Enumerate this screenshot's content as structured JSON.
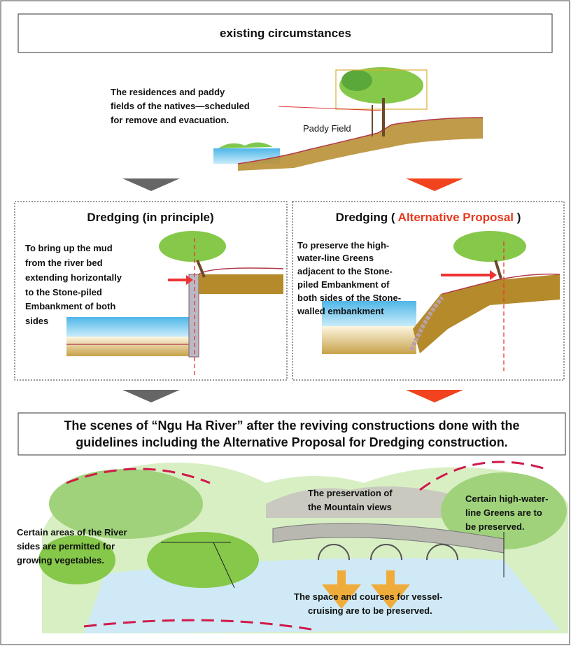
{
  "header": {
    "title": "existing circumstances"
  },
  "existing": {
    "note": [
      "The residences and paddy",
      "fields of the natives—scheduled",
      "for remove and evacuation."
    ],
    "label": "Paddy Field"
  },
  "panels": [
    {
      "title": "Dredging (in principle)",
      "text": [
        "To bring up the mud",
        "from the river bed",
        "extending horizontally",
        "to the Stone-piled",
        "Embankment of both",
        "sides"
      ]
    },
    {
      "title": "Dredging (",
      "highlight": "Alternative Proposal",
      "title_end": ")",
      "text": [
        "To preserve the high-",
        "water-line Greens",
        "adjacent to the Stone-",
        "piled Embankment of",
        "both sides of the Stone-",
        "walled embankment"
      ]
    }
  ],
  "scene": {
    "heading": [
      "The scenes of “Ngu Ha River” after the reviving constructions done with the",
      "guidelines including the Alternative Proposal for Dredging construction."
    ],
    "annotations": [
      [
        "The preservation of",
        "the Mountain views"
      ],
      [
        "Certain high-water-",
        "line Greens  are to",
        "be preserved."
      ],
      [
        "Certain areas of the River",
        "sides are permitted for",
        "growing vegetables."
      ],
      [
        "The space and courses for vessel-",
        "cruising are to be preserved."
      ]
    ]
  }
}
